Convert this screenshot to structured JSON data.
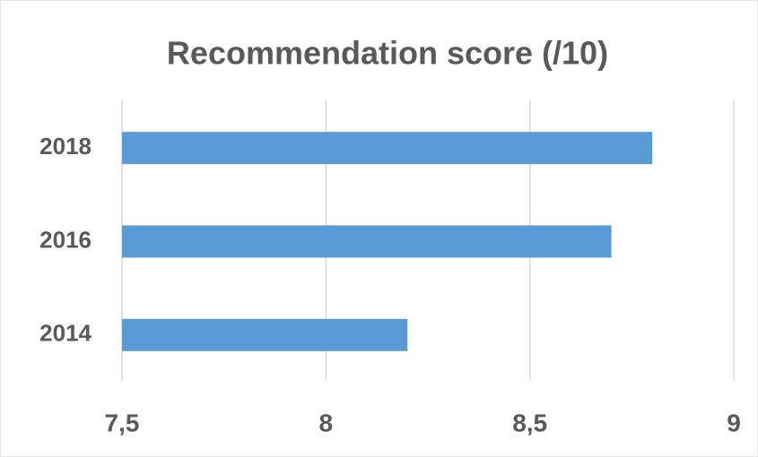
{
  "chart_data": {
    "type": "bar",
    "orientation": "horizontal",
    "title": "Recommendation score (/10)",
    "categories": [
      "2018",
      "2016",
      "2014"
    ],
    "values": [
      8.8,
      8.7,
      8.2
    ],
    "color": "#5b9bd5",
    "xlim": [
      7.5,
      9
    ],
    "xticks": [
      {
        "value": 7.5,
        "label": "7,5"
      },
      8,
      {
        "value": 8.5,
        "label": "8,5"
      },
      9
    ],
    "grid": true
  }
}
